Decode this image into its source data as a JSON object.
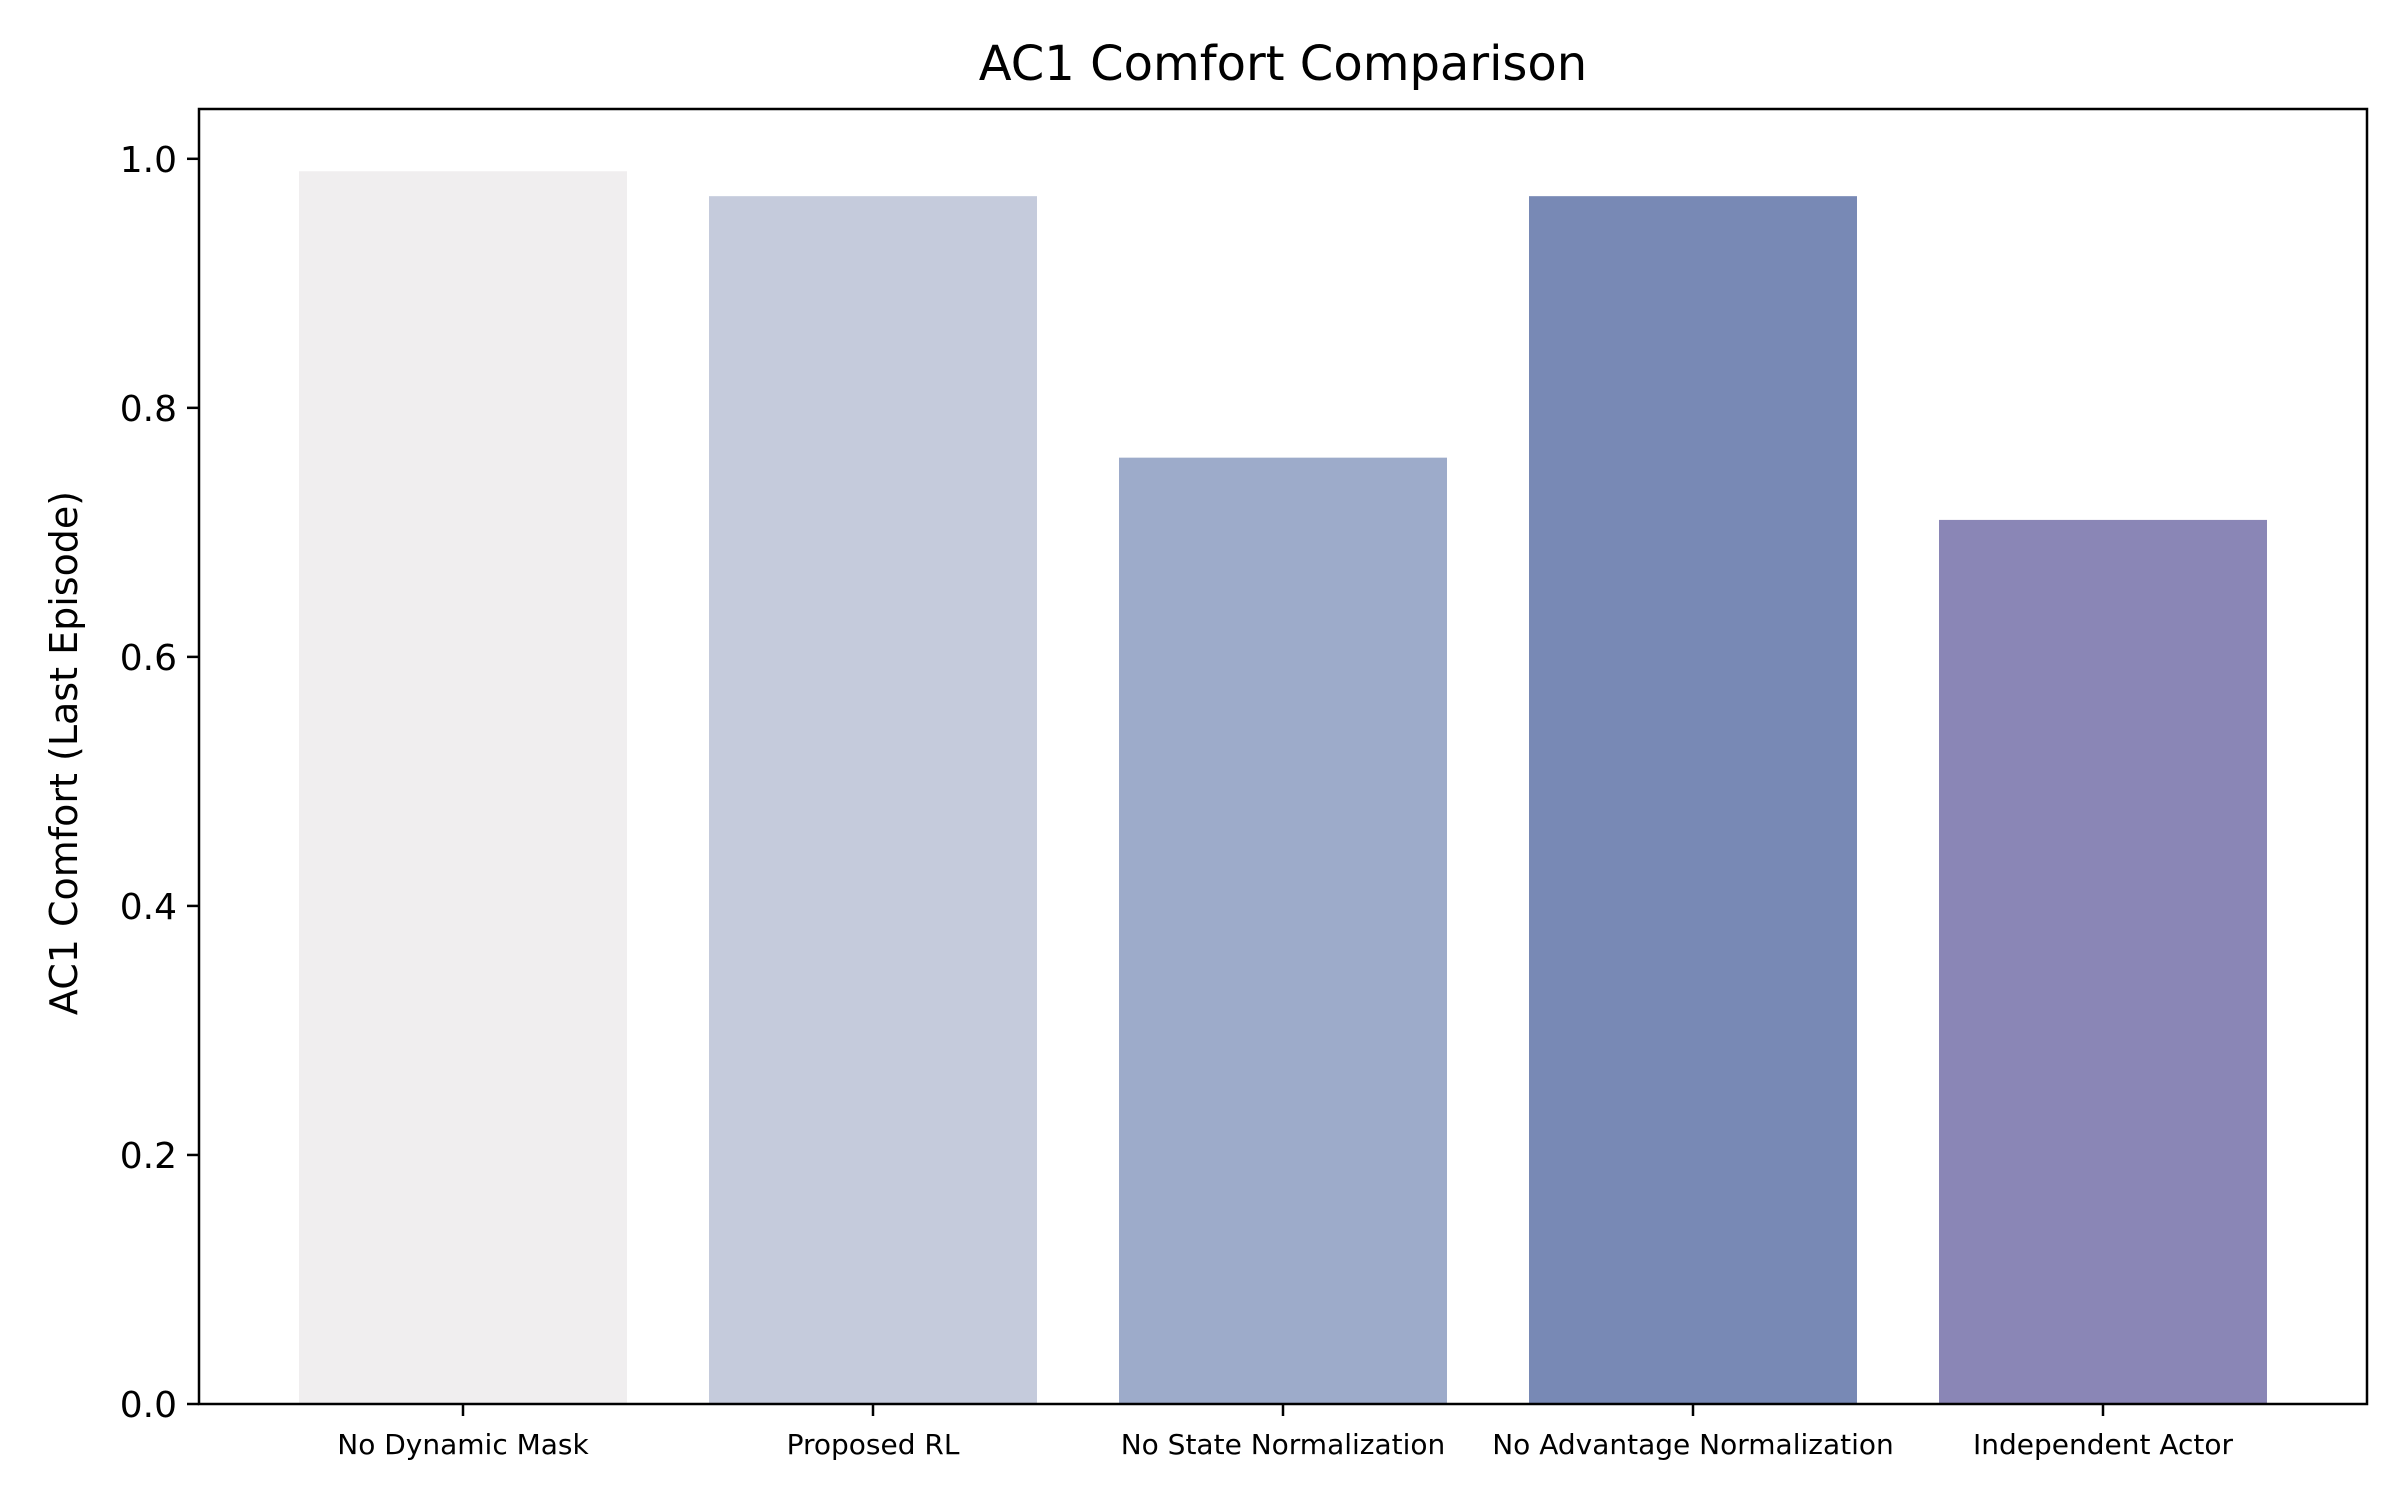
{
  "chart_data": {
    "type": "bar",
    "title": "AC1 Comfort Comparison",
    "xlabel": "",
    "ylabel": "AC1 Comfort (Last Episode)",
    "categories": [
      "No Dynamic Mask",
      "Proposed RL",
      "No State Normalization",
      "No Advantage Normalization",
      "Independent Actor"
    ],
    "values": [
      0.99,
      0.97,
      0.76,
      0.97,
      0.71
    ],
    "colors": [
      "#f0eeef",
      "#c5cbdc",
      "#9dabca",
      "#7889b5",
      "#8a86b6"
    ],
    "ylim": [
      0,
      1.04
    ],
    "yticks": [
      0.0,
      0.2,
      0.4,
      0.6,
      0.8,
      1.0
    ],
    "ytick_labels": [
      "0.0",
      "0.2",
      "0.4",
      "0.6",
      "0.8",
      "1.0"
    ],
    "grid": false,
    "legend": "none"
  }
}
